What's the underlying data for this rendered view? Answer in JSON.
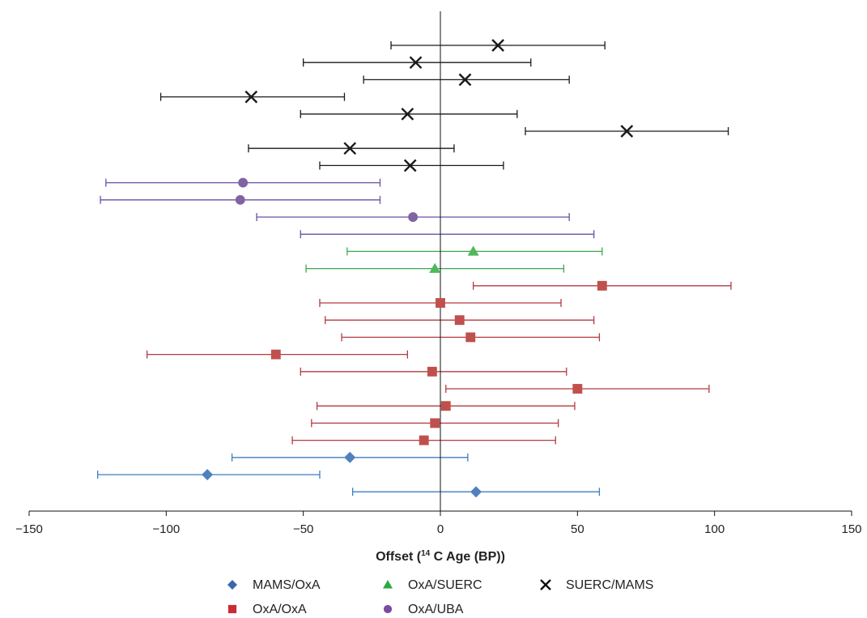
{
  "chart_data": {
    "type": "scatter",
    "subtype": "forest-plot-with-horizontal-error-bars",
    "xlabel_prefix": "Offset (",
    "xlabel_sup": "14",
    "xlabel_suffix": " C Age (BP))",
    "xlim": [
      -150,
      150
    ],
    "xticks": [
      -150,
      -100,
      -50,
      0,
      50,
      100,
      150
    ],
    "xtick_labels": [
      "−150",
      "−100",
      "−50",
      "0",
      "50",
      "100",
      "150"
    ],
    "reference_line_x": 0,
    "grid": false,
    "legend_position": "bottom",
    "series": [
      {
        "name": "SUERC/MAMS",
        "marker": "x",
        "marker_color": "#1a1a1a",
        "bar_color": "#1a1a1a",
        "points": [
          {
            "x": 21,
            "lo": -18,
            "hi": 60
          },
          {
            "x": -9,
            "lo": -50,
            "hi": 33
          },
          {
            "x": 9,
            "lo": -28,
            "hi": 47
          },
          {
            "x": -69,
            "lo": -102,
            "hi": -35
          },
          {
            "x": -12,
            "lo": -51,
            "hi": 28
          },
          {
            "x": 68,
            "lo": 31,
            "hi": 105
          },
          {
            "x": -33,
            "lo": -70,
            "hi": 5
          },
          {
            "x": -11,
            "lo": -44,
            "hi": 23
          }
        ]
      },
      {
        "name": "OxA/UBA",
        "marker": "circle",
        "marker_color": "#8064a2",
        "bar_color": "#6a4fa6",
        "points": [
          {
            "x": -72,
            "lo": -122,
            "hi": -22
          },
          {
            "x": -73,
            "lo": -124,
            "hi": -22
          },
          {
            "x": -10,
            "lo": -67,
            "hi": 47
          },
          {
            "x": null,
            "lo": -51,
            "hi": 56
          }
        ]
      },
      {
        "name": "OxA/SUERC",
        "marker": "triangle",
        "marker_color": "#4fb85c",
        "bar_color": "#3aa84e",
        "points": [
          {
            "x": 12,
            "lo": -34,
            "hi": 59
          },
          {
            "x": -2,
            "lo": -49,
            "hi": 45
          }
        ]
      },
      {
        "name": "OxA/OxA",
        "marker": "square",
        "marker_color": "#c0504d",
        "bar_color": "#b53a42",
        "points": [
          {
            "x": 59,
            "lo": 12,
            "hi": 106
          },
          {
            "x": 0,
            "lo": -44,
            "hi": 44
          },
          {
            "x": 7,
            "lo": -42,
            "hi": 56
          },
          {
            "x": 11,
            "lo": -36,
            "hi": 58
          },
          {
            "x": -60,
            "lo": -107,
            "hi": -12
          },
          {
            "x": -3,
            "lo": -51,
            "hi": 46
          },
          {
            "x": 50,
            "lo": 2,
            "hi": 98
          },
          {
            "x": 2,
            "lo": -45,
            "hi": 49
          },
          {
            "x": -2,
            "lo": -47,
            "hi": 43
          },
          {
            "x": -6,
            "lo": -54,
            "hi": 42
          }
        ]
      },
      {
        "name": "MAMS/OxA",
        "marker": "diamond",
        "marker_color": "#4f81bd",
        "bar_color": "#3b7fc0",
        "points": [
          {
            "x": -33,
            "lo": -76,
            "hi": 10
          },
          {
            "x": -85,
            "lo": -125,
            "hi": -44
          },
          {
            "x": 13,
            "lo": -32,
            "hi": 58
          }
        ]
      }
    ],
    "legend": [
      {
        "name": "MAMS/OxA",
        "marker": "diamond",
        "color": "#3a66b0"
      },
      {
        "name": "OxA/SUERC",
        "marker": "triangle",
        "color": "#2fa843"
      },
      {
        "name": "SUERC/MAMS",
        "marker": "x",
        "color": "#111111"
      },
      {
        "name": "OxA/OxA",
        "marker": "square",
        "color": "#cc2a36"
      },
      {
        "name": "OxA/UBA",
        "marker": "circle",
        "color": "#7b4ca0"
      }
    ]
  }
}
